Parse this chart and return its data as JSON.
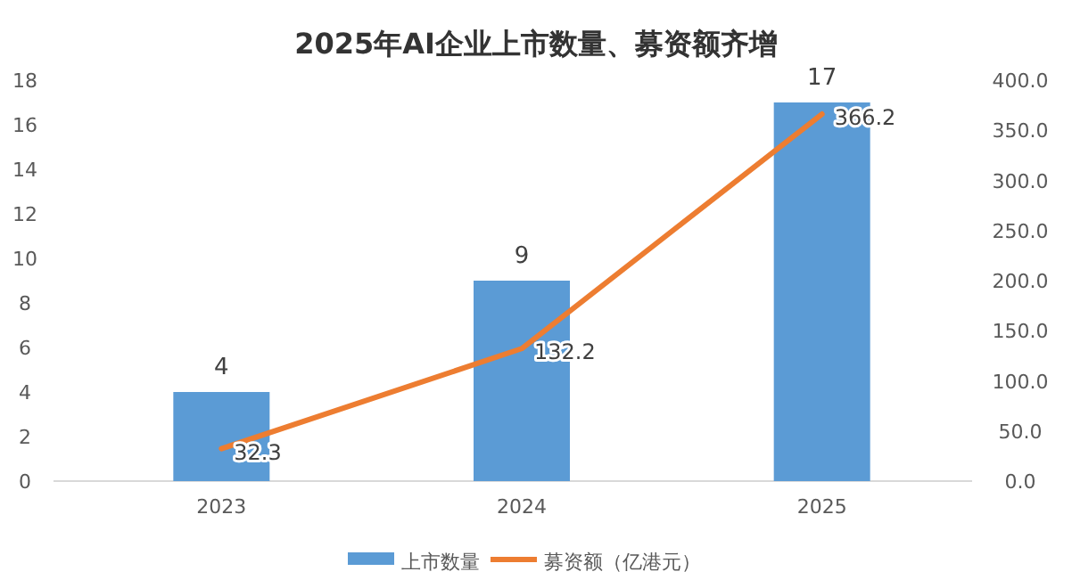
{
  "chart_data": {
    "type": "bar",
    "title": "2025年AI企业上市数量、募资额齐增",
    "categories": [
      "2023",
      "2024",
      "2025"
    ],
    "series": [
      {
        "name": "上市数量",
        "color": "#5b9bd5",
        "values": [
          4,
          9,
          17
        ]
      },
      {
        "name": "募资额（亿港元）",
        "type": "line",
        "axis": "y2",
        "color": "#ed7d31",
        "values": [
          32.3,
          132.2,
          366.2
        ]
      }
    ],
    "ylim": [
      0,
      18
    ],
    "yticks": [
      0,
      2,
      4,
      6,
      8,
      10,
      12,
      14,
      16,
      18
    ],
    "y2lim": [
      0,
      400
    ],
    "y2ticks": [
      {
        "value": 0,
        "label": "0.0"
      },
      {
        "value": 50,
        "label": "50.0"
      },
      {
        "value": 100,
        "label": "100.0"
      },
      {
        "value": 150,
        "label": "150.0"
      },
      {
        "value": 200,
        "label": "200.0"
      },
      {
        "value": 250,
        "label": "250.0"
      },
      {
        "value": 300,
        "label": "300.0"
      },
      {
        "value": 350,
        "label": "350.0"
      },
      {
        "value": 400,
        "label": "400.0"
      }
    ],
    "legend": "bottom",
    "data_labels": true
  }
}
